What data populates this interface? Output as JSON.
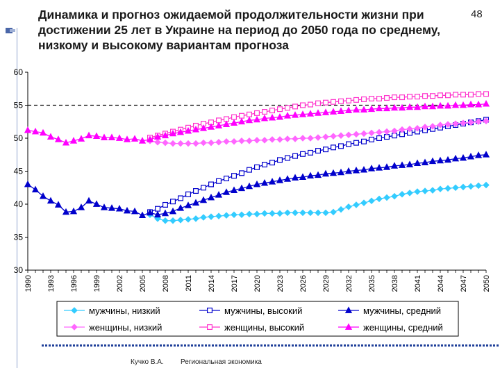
{
  "slide": {
    "title": "Динамика и прогноз ожидаемой продолжительности жизни при достижении 25 лет в Украине на период до 2050 года по среднему, низкому и высокому вариантам прогноза",
    "page_number": "48",
    "footer_author": "Кучко В.А.",
    "footer_course": "Региональная экономика"
  },
  "chart_data": {
    "type": "line",
    "title": "",
    "xlabel": "",
    "ylabel": "",
    "ylim": [
      30,
      60
    ],
    "yticks": [
      30,
      35,
      40,
      45,
      50,
      55,
      60
    ],
    "xlim": [
      1990,
      2050
    ],
    "xticks": [
      1990,
      1993,
      1996,
      1999,
      2002,
      2005,
      2008,
      2011,
      2014,
      2017,
      2020,
      2023,
      2026,
      2029,
      2032,
      2035,
      2038,
      2041,
      2044,
      2047,
      2050
    ],
    "reference_line": 55,
    "grid": false,
    "legend_position": "bottom",
    "series": [
      {
        "name": "мужчины, низкий",
        "color": "#33ccff",
        "marker": "diamond",
        "points": [
          [
            2006,
            38.4
          ],
          [
            2007,
            37.8
          ],
          [
            2008,
            37.5
          ],
          [
            2009,
            37.5
          ],
          [
            2010,
            37.6
          ],
          [
            2011,
            37.7
          ],
          [
            2012,
            37.8
          ],
          [
            2013,
            38.0
          ],
          [
            2014,
            38.1
          ],
          [
            2015,
            38.2
          ],
          [
            2016,
            38.3
          ],
          [
            2017,
            38.4
          ],
          [
            2018,
            38.4
          ],
          [
            2019,
            38.5
          ],
          [
            2020,
            38.5
          ],
          [
            2021,
            38.6
          ],
          [
            2022,
            38.6
          ],
          [
            2023,
            38.6
          ],
          [
            2024,
            38.7
          ],
          [
            2025,
            38.7
          ],
          [
            2026,
            38.7
          ],
          [
            2027,
            38.7
          ],
          [
            2028,
            38.7
          ],
          [
            2029,
            38.7
          ],
          [
            2030,
            38.8
          ],
          [
            2031,
            39.2
          ],
          [
            2032,
            39.6
          ],
          [
            2033,
            39.9
          ],
          [
            2034,
            40.2
          ],
          [
            2035,
            40.5
          ],
          [
            2036,
            40.8
          ],
          [
            2037,
            41.0
          ],
          [
            2038,
            41.2
          ],
          [
            2039,
            41.5
          ],
          [
            2040,
            41.7
          ],
          [
            2041,
            41.9
          ],
          [
            2042,
            42.0
          ],
          [
            2043,
            42.1
          ],
          [
            2044,
            42.3
          ],
          [
            2045,
            42.4
          ],
          [
            2046,
            42.5
          ],
          [
            2047,
            42.6
          ],
          [
            2048,
            42.7
          ],
          [
            2049,
            42.8
          ],
          [
            2050,
            42.9
          ]
        ]
      },
      {
        "name": "мужчины, высокий",
        "color": "#0000cc",
        "marker": "square",
        "points": [
          [
            2006,
            38.8
          ],
          [
            2007,
            39.3
          ],
          [
            2008,
            39.9
          ],
          [
            2009,
            40.4
          ],
          [
            2010,
            40.9
          ],
          [
            2011,
            41.5
          ],
          [
            2012,
            42.0
          ],
          [
            2013,
            42.5
          ],
          [
            2014,
            43.0
          ],
          [
            2015,
            43.5
          ],
          [
            2016,
            43.9
          ],
          [
            2017,
            44.3
          ],
          [
            2018,
            44.7
          ],
          [
            2019,
            45.2
          ],
          [
            2020,
            45.6
          ],
          [
            2021,
            46.0
          ],
          [
            2022,
            46.3
          ],
          [
            2023,
            46.7
          ],
          [
            2024,
            47.0
          ],
          [
            2025,
            47.3
          ],
          [
            2026,
            47.6
          ],
          [
            2027,
            47.8
          ],
          [
            2028,
            48.1
          ],
          [
            2029,
            48.3
          ],
          [
            2030,
            48.6
          ],
          [
            2031,
            48.8
          ],
          [
            2032,
            49.1
          ],
          [
            2033,
            49.3
          ],
          [
            2034,
            49.5
          ],
          [
            2035,
            49.8
          ],
          [
            2036,
            50.0
          ],
          [
            2037,
            50.2
          ],
          [
            2038,
            50.4
          ],
          [
            2039,
            50.6
          ],
          [
            2040,
            50.8
          ],
          [
            2041,
            51.0
          ],
          [
            2042,
            51.2
          ],
          [
            2043,
            51.4
          ],
          [
            2044,
            51.6
          ],
          [
            2045,
            51.8
          ],
          [
            2046,
            52.0
          ],
          [
            2047,
            52.2
          ],
          [
            2048,
            52.4
          ],
          [
            2049,
            52.6
          ],
          [
            2050,
            52.8
          ]
        ]
      },
      {
        "name": "мужчины, средний",
        "color": "#0000cc",
        "marker": "triangle",
        "points": [
          [
            1990,
            43.0
          ],
          [
            1991,
            42.2
          ],
          [
            1992,
            41.2
          ],
          [
            1993,
            40.5
          ],
          [
            1994,
            39.9
          ],
          [
            1995,
            38.8
          ],
          [
            1996,
            38.9
          ],
          [
            1997,
            39.5
          ],
          [
            1998,
            40.5
          ],
          [
            1999,
            40.0
          ],
          [
            2000,
            39.5
          ],
          [
            2001,
            39.4
          ],
          [
            2002,
            39.3
          ],
          [
            2003,
            39.0
          ],
          [
            2004,
            38.9
          ],
          [
            2005,
            38.3
          ],
          [
            2006,
            38.7
          ],
          [
            2007,
            38.4
          ],
          [
            2008,
            38.6
          ],
          [
            2009,
            38.9
          ],
          [
            2010,
            39.4
          ],
          [
            2011,
            39.8
          ],
          [
            2012,
            40.2
          ],
          [
            2013,
            40.6
          ],
          [
            2014,
            41.0
          ],
          [
            2015,
            41.4
          ],
          [
            2016,
            41.8
          ],
          [
            2017,
            42.1
          ],
          [
            2018,
            42.4
          ],
          [
            2019,
            42.7
          ],
          [
            2020,
            43.0
          ],
          [
            2021,
            43.2
          ],
          [
            2022,
            43.4
          ],
          [
            2023,
            43.6
          ],
          [
            2024,
            43.8
          ],
          [
            2025,
            44.0
          ],
          [
            2026,
            44.1
          ],
          [
            2027,
            44.3
          ],
          [
            2028,
            44.4
          ],
          [
            2029,
            44.6
          ],
          [
            2030,
            44.7
          ],
          [
            2031,
            44.8
          ],
          [
            2032,
            45.0
          ],
          [
            2033,
            45.1
          ],
          [
            2034,
            45.2
          ],
          [
            2035,
            45.4
          ],
          [
            2036,
            45.5
          ],
          [
            2037,
            45.6
          ],
          [
            2038,
            45.8
          ],
          [
            2039,
            45.9
          ],
          [
            2040,
            46.0
          ],
          [
            2041,
            46.2
          ],
          [
            2042,
            46.3
          ],
          [
            2043,
            46.5
          ],
          [
            2044,
            46.6
          ],
          [
            2045,
            46.7
          ],
          [
            2046,
            46.9
          ],
          [
            2047,
            47.0
          ],
          [
            2048,
            47.2
          ],
          [
            2049,
            47.4
          ],
          [
            2050,
            47.5
          ]
        ]
      },
      {
        "name": "женщины, низкий",
        "color": "#ff66ff",
        "marker": "diamond",
        "points": [
          [
            2006,
            49.6
          ],
          [
            2007,
            49.4
          ],
          [
            2008,
            49.3
          ],
          [
            2009,
            49.2
          ],
          [
            2010,
            49.2
          ],
          [
            2011,
            49.2
          ],
          [
            2012,
            49.2
          ],
          [
            2013,
            49.3
          ],
          [
            2014,
            49.3
          ],
          [
            2015,
            49.4
          ],
          [
            2016,
            49.5
          ],
          [
            2017,
            49.5
          ],
          [
            2018,
            49.6
          ],
          [
            2019,
            49.6
          ],
          [
            2020,
            49.7
          ],
          [
            2021,
            49.7
          ],
          [
            2022,
            49.8
          ],
          [
            2023,
            49.8
          ],
          [
            2024,
            49.9
          ],
          [
            2025,
            49.9
          ],
          [
            2026,
            50.0
          ],
          [
            2027,
            50.0
          ],
          [
            2028,
            50.1
          ],
          [
            2029,
            50.2
          ],
          [
            2030,
            50.3
          ],
          [
            2031,
            50.4
          ],
          [
            2032,
            50.5
          ],
          [
            2033,
            50.6
          ],
          [
            2034,
            50.7
          ],
          [
            2035,
            50.8
          ],
          [
            2036,
            50.9
          ],
          [
            2037,
            51.0
          ],
          [
            2038,
            51.1
          ],
          [
            2039,
            51.3
          ],
          [
            2040,
            51.4
          ],
          [
            2041,
            51.5
          ],
          [
            2042,
            51.7
          ],
          [
            2043,
            51.8
          ],
          [
            2044,
            52.0
          ],
          [
            2045,
            52.1
          ],
          [
            2046,
            52.2
          ],
          [
            2047,
            52.3
          ],
          [
            2048,
            52.4
          ],
          [
            2049,
            52.5
          ],
          [
            2050,
            52.6
          ]
        ]
      },
      {
        "name": "женщины, высокий",
        "color": "#ff33cc",
        "marker": "square",
        "points": [
          [
            2006,
            50.1
          ],
          [
            2007,
            50.4
          ],
          [
            2008,
            50.7
          ],
          [
            2009,
            51.0
          ],
          [
            2010,
            51.3
          ],
          [
            2011,
            51.6
          ],
          [
            2012,
            51.9
          ],
          [
            2013,
            52.2
          ],
          [
            2014,
            52.4
          ],
          [
            2015,
            52.7
          ],
          [
            2016,
            52.9
          ],
          [
            2017,
            53.2
          ],
          [
            2018,
            53.4
          ],
          [
            2019,
            53.6
          ],
          [
            2020,
            53.8
          ],
          [
            2021,
            54.0
          ],
          [
            2022,
            54.2
          ],
          [
            2023,
            54.4
          ],
          [
            2024,
            54.6
          ],
          [
            2025,
            54.8
          ],
          [
            2026,
            55.0
          ],
          [
            2027,
            55.1
          ],
          [
            2028,
            55.3
          ],
          [
            2029,
            55.4
          ],
          [
            2030,
            55.5
          ],
          [
            2031,
            55.6
          ],
          [
            2032,
            55.7
          ],
          [
            2033,
            55.8
          ],
          [
            2034,
            55.9
          ],
          [
            2035,
            56.0
          ],
          [
            2036,
            56.0
          ],
          [
            2037,
            56.1
          ],
          [
            2038,
            56.2
          ],
          [
            2039,
            56.2
          ],
          [
            2040,
            56.3
          ],
          [
            2041,
            56.3
          ],
          [
            2042,
            56.4
          ],
          [
            2043,
            56.4
          ],
          [
            2044,
            56.5
          ],
          [
            2045,
            56.5
          ],
          [
            2046,
            56.6
          ],
          [
            2047,
            56.6
          ],
          [
            2048,
            56.6
          ],
          [
            2049,
            56.7
          ],
          [
            2050,
            56.7
          ]
        ]
      },
      {
        "name": "женщины, средний",
        "color": "#ff00ff",
        "marker": "triangle",
        "points": [
          [
            1990,
            51.2
          ],
          [
            1991,
            51.0
          ],
          [
            1992,
            50.8
          ],
          [
            1993,
            50.2
          ],
          [
            1994,
            49.8
          ],
          [
            1995,
            49.3
          ],
          [
            1996,
            49.6
          ],
          [
            1997,
            49.9
          ],
          [
            1998,
            50.4
          ],
          [
            1999,
            50.3
          ],
          [
            2000,
            50.1
          ],
          [
            2001,
            50.1
          ],
          [
            2002,
            50.0
          ],
          [
            2003,
            49.8
          ],
          [
            2004,
            49.9
          ],
          [
            2005,
            49.6
          ],
          [
            2006,
            49.8
          ],
          [
            2007,
            50.2
          ],
          [
            2008,
            50.4
          ],
          [
            2009,
            50.7
          ],
          [
            2010,
            50.9
          ],
          [
            2011,
            51.1
          ],
          [
            2012,
            51.3
          ],
          [
            2013,
            51.5
          ],
          [
            2014,
            51.7
          ],
          [
            2015,
            51.9
          ],
          [
            2016,
            52.1
          ],
          [
            2017,
            52.3
          ],
          [
            2018,
            52.5
          ],
          [
            2019,
            52.7
          ],
          [
            2020,
            52.8
          ],
          [
            2021,
            53.0
          ],
          [
            2022,
            53.1
          ],
          [
            2023,
            53.2
          ],
          [
            2024,
            53.4
          ],
          [
            2025,
            53.5
          ],
          [
            2026,
            53.6
          ],
          [
            2027,
            53.7
          ],
          [
            2028,
            53.8
          ],
          [
            2029,
            53.9
          ],
          [
            2030,
            54.0
          ],
          [
            2031,
            54.1
          ],
          [
            2032,
            54.2
          ],
          [
            2033,
            54.3
          ],
          [
            2034,
            54.3
          ],
          [
            2035,
            54.4
          ],
          [
            2036,
            54.5
          ],
          [
            2037,
            54.5
          ],
          [
            2038,
            54.6
          ],
          [
            2039,
            54.6
          ],
          [
            2040,
            54.7
          ],
          [
            2041,
            54.7
          ],
          [
            2042,
            54.8
          ],
          [
            2043,
            54.8
          ],
          [
            2044,
            54.9
          ],
          [
            2045,
            54.9
          ],
          [
            2046,
            55.0
          ],
          [
            2047,
            55.0
          ],
          [
            2048,
            55.1
          ],
          [
            2049,
            55.1
          ],
          [
            2050,
            55.2
          ]
        ]
      }
    ]
  }
}
